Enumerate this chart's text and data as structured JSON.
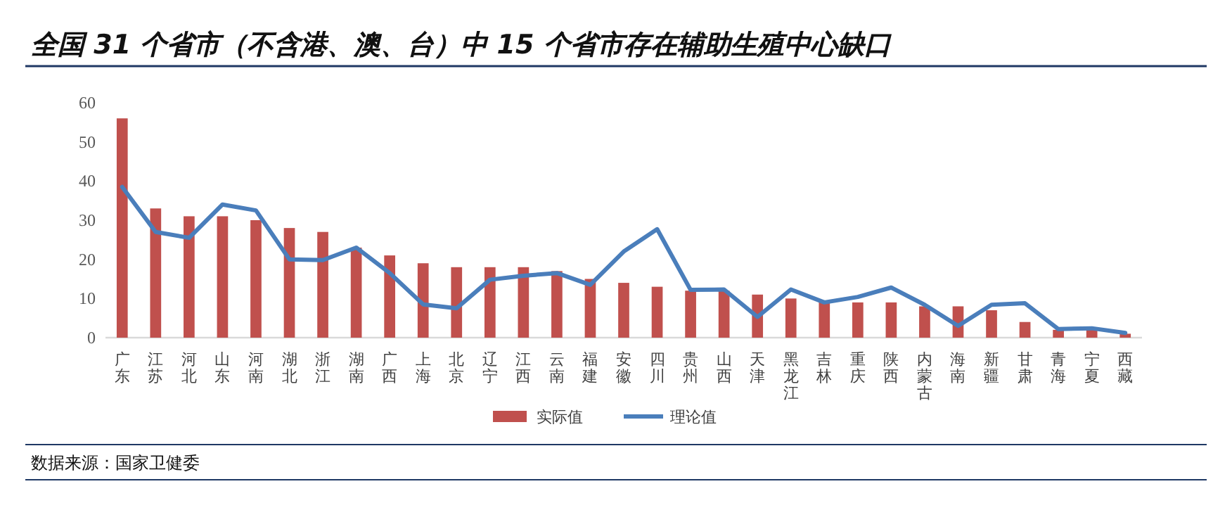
{
  "chart_data": {
    "type": "bar",
    "title": "全国 31 个省市（不含港、澳、台）中 15 个省市存在辅助生殖中心缺口",
    "categories": [
      "广东",
      "江苏",
      "河北",
      "山东",
      "河南",
      "湖北",
      "浙江",
      "湖南",
      "广西",
      "上海",
      "北京",
      "辽宁",
      "江西",
      "云南",
      "福建",
      "安徽",
      "四川",
      "贵州",
      "山西",
      "天津",
      "黑龙江",
      "吉林",
      "重庆",
      "陕西",
      "内蒙古",
      "海南",
      "新疆",
      "甘肃",
      "青海",
      "宁夏",
      "西藏"
    ],
    "series": [
      {
        "name": "实际值",
        "color": "#c0504d",
        "values": [
          56,
          33,
          31,
          31,
          30,
          28,
          27,
          23,
          21,
          19,
          18,
          18,
          18,
          17,
          15,
          14,
          13,
          12,
          12,
          11,
          10,
          9,
          9,
          9,
          8,
          8,
          7,
          4,
          2,
          2,
          1
        ]
      },
      {
        "name": "理论值",
        "type": "line",
        "color": "#4a7ebb",
        "values": [
          38.5,
          27,
          25.5,
          34,
          32.5,
          20,
          19.8,
          23,
          16.5,
          8.5,
          7.5,
          14.8,
          15.8,
          16.5,
          13.5,
          22,
          27.7,
          12.2,
          12.3,
          5.3,
          12.3,
          9,
          10.4,
          12.8,
          8.4,
          3,
          8.4,
          8.8,
          2.2,
          2.4,
          1.2
        ]
      }
    ],
    "ylim": [
      0,
      60
    ],
    "yticks": [
      0,
      10,
      20,
      30,
      40,
      50,
      60
    ],
    "legend": "bottom",
    "annotations": [
      "数据来源：国家卫健委"
    ]
  }
}
